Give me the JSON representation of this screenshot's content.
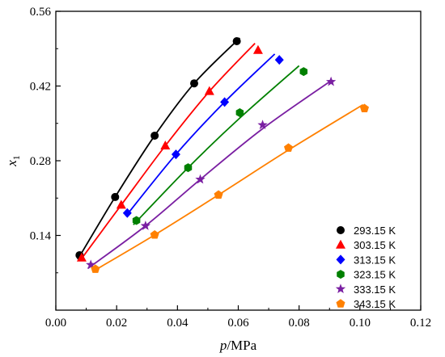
{
  "chart_data": {
    "type": "scatter",
    "xlabel": {
      "italic": "p",
      "rest": "/MPa"
    },
    "ylabel": {
      "italic": "x",
      "subscript": "1"
    },
    "xlim": [
      0.0,
      0.12
    ],
    "ylim": [
      0.0,
      0.56
    ],
    "xticks": [
      "0.00",
      "0.02",
      "0.04",
      "0.06",
      "0.08",
      "0.10",
      "0.12"
    ],
    "yticks": [
      "0.14",
      "0.28",
      "0.42",
      "0.56"
    ],
    "legend_position": "bottom-right",
    "series": [
      {
        "name": "293.15 K",
        "color": "#000000",
        "marker": "circle",
        "points": [
          [
            0.0078,
            0.103
          ],
          [
            0.0195,
            0.212
          ],
          [
            0.0325,
            0.327
          ],
          [
            0.0455,
            0.425
          ],
          [
            0.0595,
            0.504
          ]
        ],
        "fit": [
          [
            0.0072,
            0.095
          ],
          [
            0.0195,
            0.212
          ],
          [
            0.0325,
            0.327
          ],
          [
            0.0455,
            0.425
          ],
          [
            0.0605,
            0.51
          ]
        ]
      },
      {
        "name": "303.15 K",
        "color": "#ff0000",
        "marker": "triangle",
        "points": [
          [
            0.0085,
            0.098
          ],
          [
            0.0215,
            0.197
          ],
          [
            0.036,
            0.308
          ],
          [
            0.0505,
            0.41
          ],
          [
            0.0665,
            0.487
          ]
        ],
        "fit": [
          [
            0.008,
            0.093
          ],
          [
            0.0215,
            0.197
          ],
          [
            0.036,
            0.308
          ],
          [
            0.0505,
            0.41
          ],
          [
            0.0655,
            0.5
          ]
        ]
      },
      {
        "name": "313.15 K",
        "color": "#0000ff",
        "marker": "diamond",
        "points": [
          [
            0.0235,
            0.182
          ],
          [
            0.0395,
            0.292
          ],
          [
            0.0555,
            0.39
          ],
          [
            0.0735,
            0.469
          ]
        ],
        "fit": [
          [
            0.023,
            0.176
          ],
          [
            0.0395,
            0.292
          ],
          [
            0.0555,
            0.39
          ],
          [
            0.072,
            0.48
          ]
        ]
      },
      {
        "name": "323.15 K",
        "color": "#008000",
        "marker": "hexagon",
        "points": [
          [
            0.0265,
            0.168
          ],
          [
            0.0435,
            0.267
          ],
          [
            0.0605,
            0.37
          ],
          [
            0.0815,
            0.447
          ]
        ],
        "fit": [
          [
            0.0255,
            0.16
          ],
          [
            0.0435,
            0.267
          ],
          [
            0.0605,
            0.36
          ],
          [
            0.08,
            0.458
          ]
        ]
      },
      {
        "name": "333.15 K",
        "color": "#7a1fa2",
        "marker": "star",
        "points": [
          [
            0.0115,
            0.085
          ],
          [
            0.0295,
            0.158
          ],
          [
            0.0475,
            0.245
          ],
          [
            0.068,
            0.347
          ],
          [
            0.0905,
            0.428
          ]
        ],
        "fit": [
          [
            0.0105,
            0.078
          ],
          [
            0.0295,
            0.158
          ],
          [
            0.0475,
            0.245
          ],
          [
            0.068,
            0.34
          ],
          [
            0.09,
            0.428
          ]
        ]
      },
      {
        "name": "343.15 K",
        "color": "#ff8000",
        "marker": "pentagon",
        "points": [
          [
            0.013,
            0.077
          ],
          [
            0.0325,
            0.141
          ],
          [
            0.0535,
            0.216
          ],
          [
            0.0765,
            0.304
          ],
          [
            0.1015,
            0.378
          ]
        ],
        "fit": [
          [
            0.012,
            0.072
          ],
          [
            0.0325,
            0.141
          ],
          [
            0.0535,
            0.216
          ],
          [
            0.0765,
            0.3
          ],
          [
            0.101,
            0.385
          ]
        ]
      }
    ]
  }
}
